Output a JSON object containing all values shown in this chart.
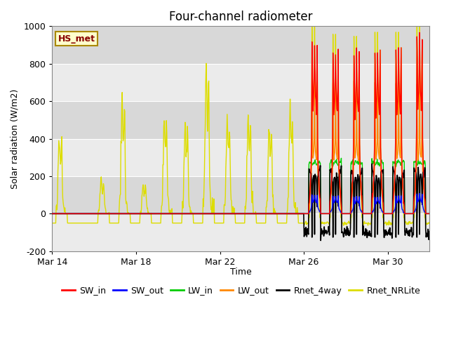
{
  "title": "Four-channel radiometer",
  "ylabel": "Solar radiation (W/m2)",
  "xlabel": "Time",
  "ylim": [
    -200,
    1000
  ],
  "plot_bg_color": "#e8e8e8",
  "label_box": "HS_met",
  "label_box_facecolor": "#ffffcc",
  "label_box_edgecolor": "#aa8800",
  "label_box_textcolor": "#880000",
  "series": {
    "SW_in": {
      "color": "#ff0000",
      "lw": 1.0
    },
    "SW_out": {
      "color": "#0000ff",
      "lw": 1.0
    },
    "LW_in": {
      "color": "#00cc00",
      "lw": 1.0
    },
    "LW_out": {
      "color": "#ff8800",
      "lw": 1.0
    },
    "Rnet_4way": {
      "color": "#000000",
      "lw": 1.2
    },
    "Rnet_NRLite": {
      "color": "#dddd00",
      "lw": 1.0
    }
  },
  "xtick_labels": [
    "Mar 14",
    "Mar 18",
    "Mar 22",
    "Mar 26",
    "Mar 30"
  ],
  "xtick_positions": [
    0,
    4,
    8,
    12,
    16
  ],
  "ytick_positions": [
    -200,
    0,
    200,
    400,
    600,
    800,
    1000
  ],
  "grid_color": "#ffffff",
  "title_fontsize": 12,
  "axis_fontsize": 9,
  "legend_fontsize": 9,
  "n_days": 18,
  "active_start_day": 12,
  "yellow_day_peaks": [
    390,
    0,
    180,
    590,
    150,
    490,
    470,
    750,
    480,
    480,
    460,
    525
  ],
  "sw_in_peaks": [
    910,
    870,
    860,
    880,
    880,
    940
  ],
  "sw_out_peaks": [
    100,
    95,
    90,
    90,
    95,
    105
  ],
  "lw_in_base": 275,
  "lw_out_peak": 340,
  "rnet_4way_night": -100,
  "rnet_nrlite_night": -50
}
